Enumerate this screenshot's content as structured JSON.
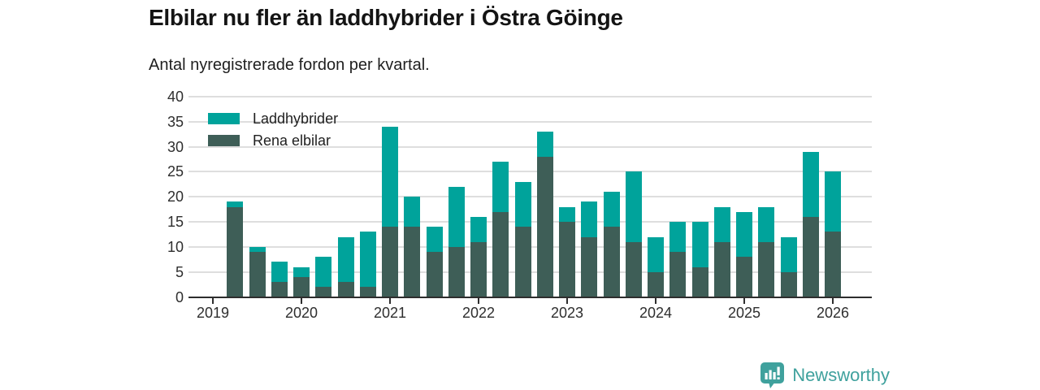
{
  "header": {
    "title": "Elbilar nu fler än laddhybrider i Östra Göinge",
    "subtitle": "Antal nyregistrerade fordon per kvartal."
  },
  "legend": [
    {
      "label": "Laddhybrider",
      "color": "#00a39b"
    },
    {
      "label": "Rena elbilar",
      "color": "#3e5e57"
    }
  ],
  "footer": {
    "brand": "Newsworthy",
    "brand_color": "#3fa19d",
    "logo_icon": "speech-bubble-bar-chart-icon"
  },
  "chart_data": {
    "type": "bar",
    "stacked": true,
    "title": "Elbilar nu fler än laddhybrider i Östra Göinge",
    "subtitle": "Antal nyregistrerade fordon per kvartal.",
    "xlabel": "",
    "ylabel": "",
    "ylim": [
      0,
      40
    ],
    "y_ticks": [
      0,
      5,
      10,
      15,
      20,
      25,
      30,
      35,
      40
    ],
    "grid": "horizontal",
    "legend_position": "top-left-inside",
    "categories": [
      "2019 Q2",
      "2019 Q3",
      "2019 Q4",
      "2020 Q1",
      "2020 Q2",
      "2020 Q3",
      "2020 Q4",
      "2021 Q1",
      "2021 Q2",
      "2021 Q3",
      "2021 Q4",
      "2022 Q1",
      "2022 Q2",
      "2022 Q3",
      "2022 Q4",
      "2023 Q1",
      "2023 Q2",
      "2023 Q3",
      "2023 Q4",
      "2024 Q1",
      "2024 Q2",
      "2024 Q3",
      "2024 Q4",
      "2025 Q1",
      "2025 Q2",
      "2025 Q3",
      "2025 Q4",
      "2026 Q1"
    ],
    "quarter_index": [
      1,
      2,
      3,
      4,
      5,
      6,
      7,
      8,
      9,
      10,
      11,
      12,
      13,
      14,
      15,
      16,
      17,
      18,
      19,
      20,
      21,
      22,
      23,
      24,
      25,
      26,
      27,
      28
    ],
    "series": [
      {
        "name": "Rena elbilar",
        "color": "#3e5e57",
        "stack_position": "bottom",
        "values": [
          18,
          9,
          3,
          4,
          2,
          3,
          2,
          14,
          14,
          9,
          10,
          11,
          17,
          14,
          28,
          15,
          12,
          14,
          11,
          5,
          9,
          6,
          11,
          8,
          11,
          5,
          16,
          13
        ]
      },
      {
        "name": "Laddhybrider",
        "color": "#00a39b",
        "stack_position": "top",
        "values": [
          1,
          1,
          4,
          2,
          6,
          9,
          11,
          20,
          6,
          5,
          12,
          5,
          10,
          9,
          5,
          3,
          7,
          7,
          14,
          7,
          6,
          9,
          7,
          9,
          7,
          7,
          13,
          12
        ]
      }
    ],
    "totals": [
      19,
      10,
      7,
      6,
      8,
      12,
      13,
      34,
      20,
      14,
      22,
      16,
      27,
      23,
      33,
      18,
      19,
      21,
      25,
      12,
      15,
      15,
      18,
      17,
      18,
      12,
      29,
      25
    ],
    "x_ticks": [
      {
        "label": "2019",
        "q": 0
      },
      {
        "label": "2020",
        "q": 4
      },
      {
        "label": "2021",
        "q": 8
      },
      {
        "label": "2022",
        "q": 12
      },
      {
        "label": "2023",
        "q": 16
      },
      {
        "label": "2024",
        "q": 20
      },
      {
        "label": "2025",
        "q": 24
      },
      {
        "label": "2026",
        "q": 28
      }
    ]
  }
}
